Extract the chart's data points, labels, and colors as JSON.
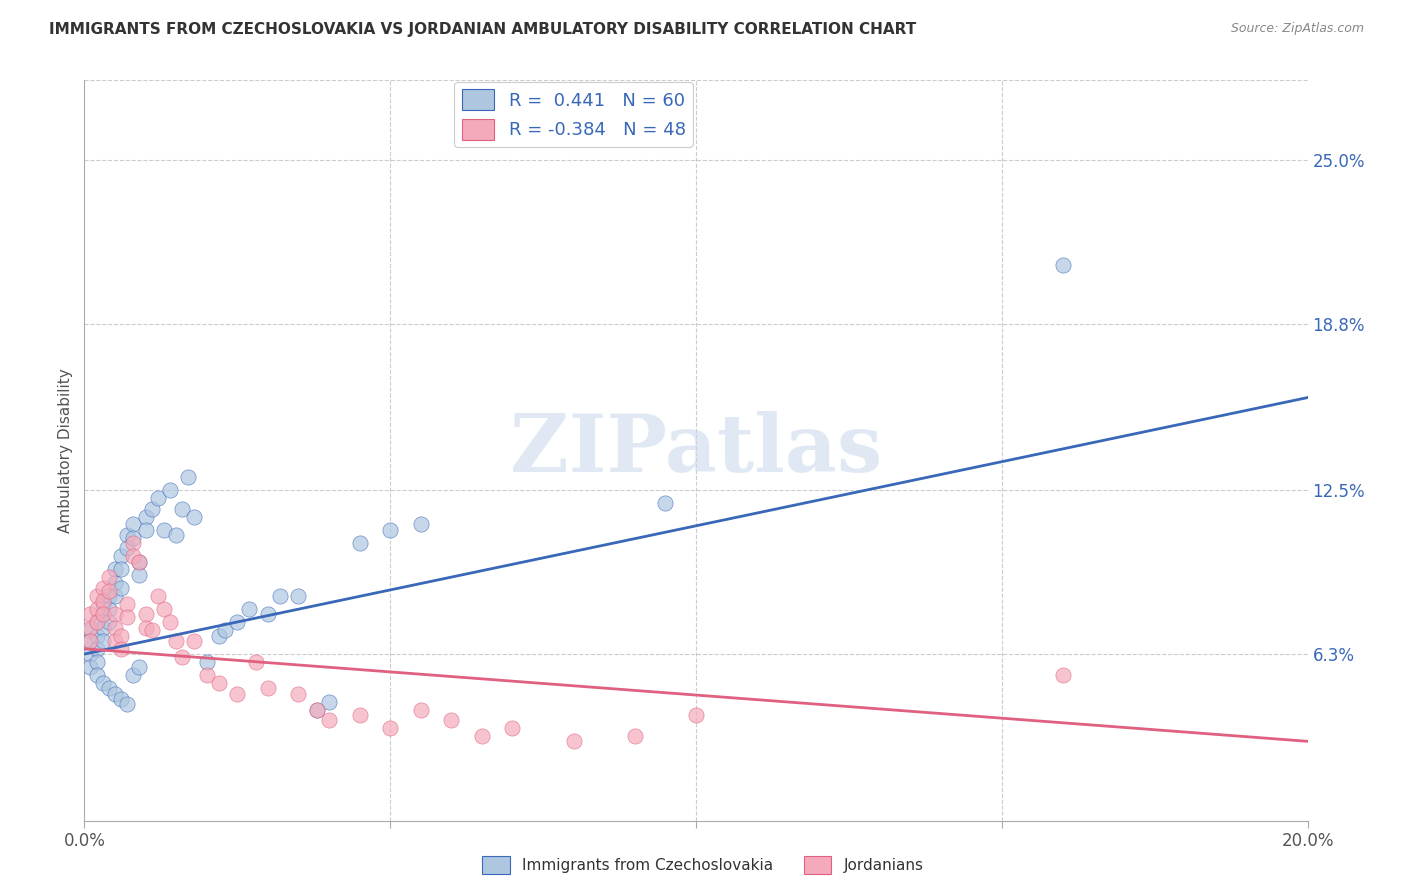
{
  "title": "IMMIGRANTS FROM CZECHOSLOVAKIA VS JORDANIAN AMBULATORY DISABILITY CORRELATION CHART",
  "source": "Source: ZipAtlas.com",
  "ylabel": "Ambulatory Disability",
  "x_min": 0.0,
  "x_max": 0.2,
  "y_min": 0.0,
  "y_max": 0.28,
  "y_tick_labels_right": [
    "25.0%",
    "18.8%",
    "12.5%",
    "6.3%"
  ],
  "y_tick_values_right": [
    0.25,
    0.188,
    0.125,
    0.063
  ],
  "blue_R": "0.441",
  "blue_N": "60",
  "pink_R": "-0.384",
  "pink_N": "48",
  "blue_color": "#aec6e0",
  "pink_color": "#f4aaba",
  "blue_line_color": "#3a68b8",
  "pink_line_color": "#e06080",
  "legend_label_blue": "Immigrants from Czechoslovakia",
  "legend_label_pink": "Jordanians",
  "watermark": "ZIPatlas",
  "background_color": "#ffffff",
  "blue_line_x0": 0.0,
  "blue_line_y0": 0.063,
  "blue_line_x1": 0.2,
  "blue_line_y1": 0.16,
  "pink_line_x0": 0.0,
  "pink_line_y0": 0.065,
  "pink_line_x1": 0.2,
  "pink_line_y1": 0.03,
  "blue_scatter_x": [
    0.001,
    0.001,
    0.001,
    0.001,
    0.002,
    0.002,
    0.002,
    0.002,
    0.003,
    0.003,
    0.003,
    0.003,
    0.004,
    0.004,
    0.004,
    0.005,
    0.005,
    0.005,
    0.006,
    0.006,
    0.006,
    0.007,
    0.007,
    0.008,
    0.008,
    0.009,
    0.009,
    0.01,
    0.01,
    0.011,
    0.012,
    0.013,
    0.014,
    0.015,
    0.016,
    0.017,
    0.018,
    0.02,
    0.022,
    0.023,
    0.025,
    0.027,
    0.03,
    0.032,
    0.035,
    0.038,
    0.04,
    0.045,
    0.05,
    0.055,
    0.002,
    0.003,
    0.004,
    0.005,
    0.006,
    0.007,
    0.008,
    0.009,
    0.16,
    0.095
  ],
  "blue_scatter_y": [
    0.072,
    0.068,
    0.063,
    0.058,
    0.075,
    0.07,
    0.065,
    0.06,
    0.082,
    0.078,
    0.073,
    0.068,
    0.085,
    0.08,
    0.075,
    0.095,
    0.09,
    0.085,
    0.1,
    0.095,
    0.088,
    0.108,
    0.103,
    0.112,
    0.107,
    0.098,
    0.093,
    0.115,
    0.11,
    0.118,
    0.122,
    0.11,
    0.125,
    0.108,
    0.118,
    0.13,
    0.115,
    0.06,
    0.07,
    0.072,
    0.075,
    0.08,
    0.078,
    0.085,
    0.085,
    0.042,
    0.045,
    0.105,
    0.11,
    0.112,
    0.055,
    0.052,
    0.05,
    0.048,
    0.046,
    0.044,
    0.055,
    0.058,
    0.21,
    0.12
  ],
  "pink_scatter_x": [
    0.001,
    0.001,
    0.001,
    0.002,
    0.002,
    0.002,
    0.003,
    0.003,
    0.003,
    0.004,
    0.004,
    0.005,
    0.005,
    0.005,
    0.006,
    0.006,
    0.007,
    0.007,
    0.008,
    0.008,
    0.009,
    0.01,
    0.01,
    0.011,
    0.012,
    0.013,
    0.014,
    0.015,
    0.016,
    0.018,
    0.02,
    0.022,
    0.025,
    0.028,
    0.03,
    0.035,
    0.038,
    0.04,
    0.045,
    0.05,
    0.055,
    0.06,
    0.065,
    0.07,
    0.08,
    0.09,
    0.16,
    0.1
  ],
  "pink_scatter_y": [
    0.078,
    0.073,
    0.068,
    0.085,
    0.08,
    0.075,
    0.088,
    0.083,
    0.078,
    0.092,
    0.087,
    0.078,
    0.073,
    0.068,
    0.07,
    0.065,
    0.082,
    0.077,
    0.105,
    0.1,
    0.098,
    0.078,
    0.073,
    0.072,
    0.085,
    0.08,
    0.075,
    0.068,
    0.062,
    0.068,
    0.055,
    0.052,
    0.048,
    0.06,
    0.05,
    0.048,
    0.042,
    0.038,
    0.04,
    0.035,
    0.042,
    0.038,
    0.032,
    0.035,
    0.03,
    0.032,
    0.055,
    0.04
  ]
}
